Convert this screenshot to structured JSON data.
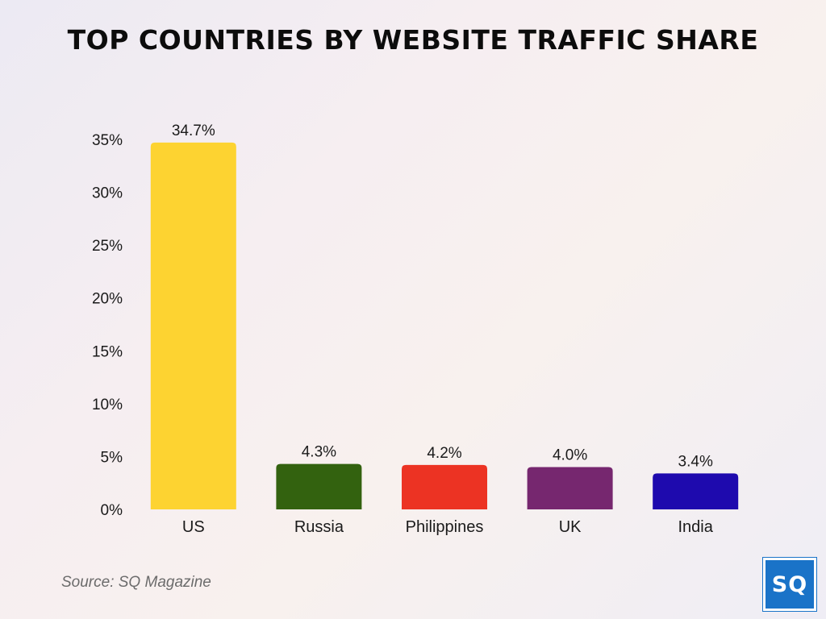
{
  "chart_data": {
    "type": "bar",
    "title": "TOP COUNTRIES BY WEBSITE TRAFFIC SHARE",
    "categories": [
      "US",
      "Russia",
      "Philippines",
      "UK",
      "India"
    ],
    "values": [
      34.7,
      4.3,
      4.2,
      4.0,
      3.4
    ],
    "value_labels": [
      "34.7%",
      "4.3%",
      "4.2%",
      "4.0%",
      "3.4%"
    ],
    "colors": [
      "#fdd331",
      "#33620f",
      "#ec3323",
      "#76276f",
      "#1e0aae"
    ],
    "ylim": [
      0,
      35
    ],
    "yticks": [
      0,
      5,
      10,
      15,
      20,
      25,
      30,
      35
    ],
    "ytick_labels": [
      "0%",
      "5%",
      "10%",
      "15%",
      "20%",
      "25%",
      "30%",
      "35%"
    ],
    "xlabel": "",
    "ylabel": "",
    "grid": false,
    "legend": "none"
  },
  "source": "Source: SQ Magazine",
  "logo_text": "SQ"
}
